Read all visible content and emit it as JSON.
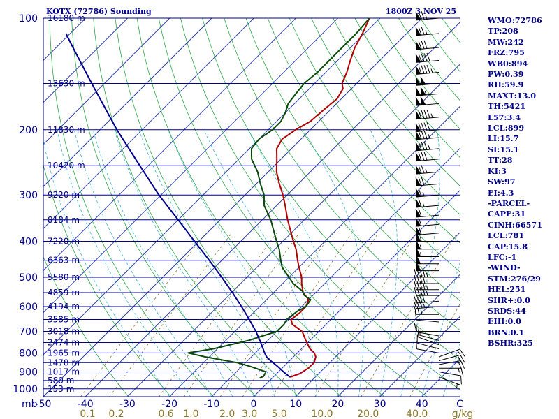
{
  "header": {
    "station": "KOTX (72786) Sounding",
    "time": "1800Z  3 NOV 25"
  },
  "chart_data": {
    "type": "line",
    "title": "KOTX (72786) Sounding",
    "diagram": "skew-T log-p",
    "pressure_labels": [
      "100",
      "200",
      "300",
      "400",
      "500",
      "600",
      "700",
      "800",
      "900",
      "1000"
    ],
    "pressure_unit": "mb",
    "temperature_ticks": [
      "-50",
      "-40",
      "-30",
      "-20",
      "-10",
      "0",
      "10",
      "20",
      "30",
      "40"
    ],
    "temperature_range_c": [
      -50,
      49
    ],
    "pressure_range_mb": [
      100,
      1050
    ],
    "wind_axis_end_label": "C",
    "mixing_ratio_labels": [
      "0.1",
      "0.2",
      "0.6",
      "1.0",
      "2.0",
      "3.0",
      "5.0",
      "10.0",
      "20.0",
      "40.0"
    ],
    "mixing_ratio_values": [
      0.1,
      0.2,
      0.6,
      1.0,
      2.0,
      3.0,
      5.0,
      10.0,
      20.0,
      40.0
    ],
    "mixing_ratio_unit": "g/kg",
    "height_levels": [
      {
        "p": 100,
        "label": "16180 m"
      },
      {
        "p": 150,
        "label": "13630 m"
      },
      {
        "p": 200,
        "label": "11830 m"
      },
      {
        "p": 250,
        "label": "10420 m"
      },
      {
        "p": 300,
        "label": "9220 m"
      },
      {
        "p": 350,
        "label": "8184 m"
      },
      {
        "p": 400,
        "label": "7220 m"
      },
      {
        "p": 450,
        "label": "6363 m"
      },
      {
        "p": 500,
        "label": "5580 m"
      },
      {
        "p": 550,
        "label": "4859 m"
      },
      {
        "p": 600,
        "label": "4194 m"
      },
      {
        "p": 650,
        "label": "3585 m"
      },
      {
        "p": 700,
        "label": "3018 m"
      },
      {
        "p": 750,
        "label": "2474 m"
      },
      {
        "p": 800,
        "label": "1965 m"
      },
      {
        "p": 850,
        "label": "1478 m"
      },
      {
        "p": 900,
        "label": "1017 m"
      },
      {
        "p": 950,
        "label": "580 m"
      },
      {
        "p": 1000,
        "label": "153 m"
      }
    ],
    "series": [
      {
        "key": "temperature",
        "color": "#b00000",
        "points": [
          {
            "p": 930,
            "t": 4.0
          },
          {
            "p": 910,
            "t": 5.5
          },
          {
            "p": 880,
            "t": 6.2
          },
          {
            "p": 850,
            "t": 6.3
          },
          {
            "p": 820,
            "t": 5.3
          },
          {
            "p": 800,
            "t": 4.0
          },
          {
            "p": 780,
            "t": 2.0
          },
          {
            "p": 740,
            "t": -1.0
          },
          {
            "p": 700,
            "t": -4.0
          },
          {
            "p": 670,
            "t": -8.0
          },
          {
            "p": 650,
            "t": -9.5
          },
          {
            "p": 625,
            "t": -9.0
          },
          {
            "p": 600,
            "t": -9.0
          },
          {
            "p": 575,
            "t": -10.0
          },
          {
            "p": 550,
            "t": -13.0
          },
          {
            "p": 520,
            "t": -15.5
          },
          {
            "p": 500,
            "t": -17.0
          },
          {
            "p": 470,
            "t": -20.0
          },
          {
            "p": 450,
            "t": -22.0
          },
          {
            "p": 420,
            "t": -25.0
          },
          {
            "p": 400,
            "t": -27.5
          },
          {
            "p": 380,
            "t": -30.0
          },
          {
            "p": 350,
            "t": -34.0
          },
          {
            "p": 320,
            "t": -38.0
          },
          {
            "p": 300,
            "t": -41.0
          },
          {
            "p": 280,
            "t": -44.5
          },
          {
            "p": 260,
            "t": -48.0
          },
          {
            "p": 240,
            "t": -51.0
          },
          {
            "p": 225,
            "t": -53.5
          },
          {
            "p": 212,
            "t": -54.5
          },
          {
            "p": 200,
            "t": -53.5
          },
          {
            "p": 190,
            "t": -52.0
          },
          {
            "p": 175,
            "t": -51.5
          },
          {
            "p": 165,
            "t": -51.0
          },
          {
            "p": 155,
            "t": -52.0
          },
          {
            "p": 150,
            "t": -53.5
          },
          {
            "p": 140,
            "t": -55.0
          },
          {
            "p": 130,
            "t": -57.0
          },
          {
            "p": 120,
            "t": -59.0
          },
          {
            "p": 110,
            "t": -60.5
          },
          {
            "p": 100,
            "t": -62.5
          }
        ]
      },
      {
        "key": "dewpoint",
        "color": "#0a4a0a",
        "points": [
          {
            "p": 935,
            "t": -3.0
          },
          {
            "p": 925,
            "t": -2.5
          },
          {
            "p": 900,
            "t": -3.0
          },
          {
            "p": 870,
            "t": -8.0
          },
          {
            "p": 850,
            "t": -12.0
          },
          {
            "p": 820,
            "t": -21.0
          },
          {
            "p": 800,
            "t": -26.0
          },
          {
            "p": 780,
            "t": -21.0
          },
          {
            "p": 740,
            "t": -14.5
          },
          {
            "p": 700,
            "t": -10.0
          },
          {
            "p": 670,
            "t": -10.0
          },
          {
            "p": 650,
            "t": -10.5
          },
          {
            "p": 620,
            "t": -10.0
          },
          {
            "p": 600,
            "t": -9.0
          },
          {
            "p": 575,
            "t": -9.5
          },
          {
            "p": 560,
            "t": -12.0
          },
          {
            "p": 545,
            "t": -13.5
          },
          {
            "p": 520,
            "t": -17.5
          },
          {
            "p": 500,
            "t": -20.0
          },
          {
            "p": 470,
            "t": -24.0
          },
          {
            "p": 450,
            "t": -26.0
          },
          {
            "p": 420,
            "t": -29.0
          },
          {
            "p": 400,
            "t": -31.5
          },
          {
            "p": 380,
            "t": -34.0
          },
          {
            "p": 350,
            "t": -38.0
          },
          {
            "p": 320,
            "t": -43.0
          },
          {
            "p": 300,
            "t": -45.5
          },
          {
            "p": 280,
            "t": -49.0
          },
          {
            "p": 260,
            "t": -52.5
          },
          {
            "p": 240,
            "t": -57.0
          },
          {
            "p": 225,
            "t": -59.5
          },
          {
            "p": 212,
            "t": -60.0
          },
          {
            "p": 200,
            "t": -59.0
          },
          {
            "p": 190,
            "t": -59.0
          },
          {
            "p": 180,
            "t": -60.0
          },
          {
            "p": 170,
            "t": -61.5
          },
          {
            "p": 160,
            "t": -62.0
          },
          {
            "p": 150,
            "t": -62.5
          },
          {
            "p": 140,
            "t": -62.0
          },
          {
            "p": 130,
            "t": -62.0
          },
          {
            "p": 120,
            "t": -62.0
          },
          {
            "p": 110,
            "t": -62.0
          },
          {
            "p": 100,
            "t": -62.5
          }
        ]
      },
      {
        "key": "parcel",
        "color": "#00008b",
        "points": [
          {
            "p": 930,
            "t": 4.0
          },
          {
            "p": 900,
            "t": 1.2
          },
          {
            "p": 870,
            "t": -1.5
          },
          {
            "p": 840,
            "t": -4.5
          },
          {
            "p": 820,
            "t": -6.4
          },
          {
            "p": 800,
            "t": -7.8
          },
          {
            "p": 750,
            "t": -11.2
          },
          {
            "p": 700,
            "t": -15.0
          },
          {
            "p": 650,
            "t": -19.4
          },
          {
            "p": 600,
            "t": -24.3
          },
          {
            "p": 550,
            "t": -29.8
          },
          {
            "p": 500,
            "t": -36.0
          },
          {
            "p": 450,
            "t": -43.0
          },
          {
            "p": 400,
            "t": -51.0
          },
          {
            "p": 350,
            "t": -60.0
          },
          {
            "p": 300,
            "t": -70.5
          },
          {
            "p": 250,
            "t": -82.0
          },
          {
            "p": 200,
            "t": -96.0
          },
          {
            "p": 150,
            "t": -113.0
          },
          {
            "p": 120,
            "t": -126.0
          },
          {
            "p": 110,
            "t": -131.0
          }
        ]
      }
    ],
    "winds": [
      {
        "p": 930,
        "dir": 110,
        "spd": 5
      },
      {
        "p": 900,
        "dir": 100,
        "spd": 10
      },
      {
        "p": 880,
        "dir": 90,
        "spd": 15
      },
      {
        "p": 860,
        "dir": 80,
        "spd": 20
      },
      {
        "p": 840,
        "dir": 75,
        "spd": 20
      },
      {
        "p": 820,
        "dir": 70,
        "spd": 15
      },
      {
        "p": 800,
        "dir": 280,
        "spd": 10
      },
      {
        "p": 780,
        "dir": 285,
        "spd": 10
      },
      {
        "p": 760,
        "dir": 290,
        "spd": 10
      },
      {
        "p": 740,
        "dir": 285,
        "spd": 5
      },
      {
        "p": 720,
        "dir": 280,
        "spd": 10
      },
      {
        "p": 700,
        "dir": 270,
        "spd": 10
      },
      {
        "p": 660,
        "dir": 275,
        "spd": 15
      },
      {
        "p": 630,
        "dir": 270,
        "spd": 25
      },
      {
        "p": 600,
        "dir": 265,
        "spd": 35
      },
      {
        "p": 580,
        "dir": 265,
        "spd": 40
      },
      {
        "p": 560,
        "dir": 270,
        "spd": 45
      },
      {
        "p": 540,
        "dir": 270,
        "spd": 45
      },
      {
        "p": 520,
        "dir": 270,
        "spd": 40
      },
      {
        "p": 500,
        "dir": 270,
        "spd": 45
      },
      {
        "p": 480,
        "dir": 270,
        "spd": 50
      },
      {
        "p": 460,
        "dir": 270,
        "spd": 50
      },
      {
        "p": 440,
        "dir": 270,
        "spd": 55
      },
      {
        "p": 420,
        "dir": 270,
        "spd": 55
      },
      {
        "p": 400,
        "dir": 270,
        "spd": 55
      },
      {
        "p": 380,
        "dir": 265,
        "spd": 60
      },
      {
        "p": 360,
        "dir": 265,
        "spd": 60
      },
      {
        "p": 340,
        "dir": 265,
        "spd": 60
      },
      {
        "p": 320,
        "dir": 265,
        "spd": 65
      },
      {
        "p": 300,
        "dir": 265,
        "spd": 65
      },
      {
        "p": 280,
        "dir": 265,
        "spd": 70
      },
      {
        "p": 260,
        "dir": 265,
        "spd": 75
      },
      {
        "p": 240,
        "dir": 265,
        "spd": 80
      },
      {
        "p": 225,
        "dir": 265,
        "spd": 85
      },
      {
        "p": 210,
        "dir": 265,
        "spd": 85
      },
      {
        "p": 200,
        "dir": 265,
        "spd": 90
      },
      {
        "p": 185,
        "dir": 265,
        "spd": 95
      },
      {
        "p": 170,
        "dir": 265,
        "spd": 100
      },
      {
        "p": 160,
        "dir": 265,
        "spd": 105
      },
      {
        "p": 150,
        "dir": 265,
        "spd": 100
      },
      {
        "p": 140,
        "dir": 265,
        "spd": 95
      },
      {
        "p": 130,
        "dir": 265,
        "spd": 90
      },
      {
        "p": 120,
        "dir": 265,
        "spd": 80
      },
      {
        "p": 110,
        "dir": 265,
        "spd": 75
      },
      {
        "p": 100,
        "dir": 265,
        "spd": 75
      }
    ],
    "colors": {
      "isobar": "#00008b",
      "isotherm": "#2b3fb0",
      "dry_adiabat": "#2fa64a",
      "moist_adiabat": "#3fb6d6",
      "mixing_ratio": "#8a7a2a",
      "wind_barb": "#000000"
    }
  },
  "indices": [
    "WMO:72786",
    "TP:208",
    "MW:242",
    "FRZ:795",
    "WB0:894",
    "PW:0.39",
    "RH:59.9",
    "MAXT:13.0",
    "TH:5421",
    "L57:3.4",
    "LCL:899",
    "LI:15.7",
    "SI:15.1",
    "TT:28",
    "KI:3",
    "SW:97",
    "EI:4.3",
    "-PARCEL-",
    "CAPE:31",
    "CINH:66571",
    "LCL:781",
    "CAP:15.8",
    "LFC:-1",
    "-WIND-",
    "STM:276/29",
    "HEL:251",
    "SHR+:0.0",
    "SRDS:44",
    "EHI:0.0",
    "BRN:0.1",
    "BSHR:325"
  ]
}
